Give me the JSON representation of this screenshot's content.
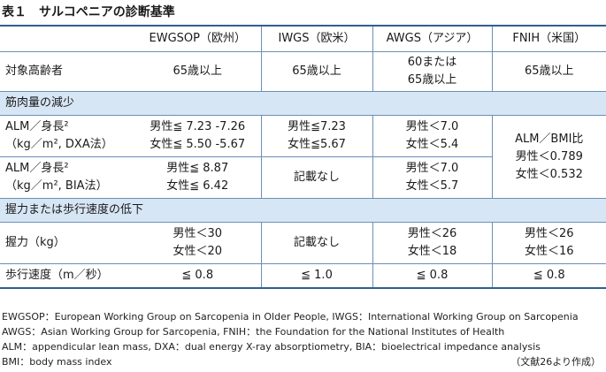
{
  "title": {
    "number": "表１",
    "text": "サルコペニアの診断基準"
  },
  "header": [
    "",
    "EWGSOP（欧州）",
    "IWGS（欧米）",
    "AWGS（アジア）",
    "FNIH（米国）"
  ],
  "rows": {
    "age": {
      "label": "対象高齢者",
      "ewgsop": "65歳以上",
      "iwgs": "65歳以上",
      "awgs_l1": "60または",
      "awgs_l2": "65歳以上",
      "fnih": "65歳以上"
    },
    "sec_muscle": "筋肉量の減少",
    "alm_dxa": {
      "label_l1": "ALM／身長²",
      "label_l2": "（kg／m², DXA法）",
      "ewgsop_l1": "男性≦ 7.23 -7.26",
      "ewgsop_l2": "女性≦ 5.50 -5.67",
      "iwgs_l1": "男性≦7.23",
      "iwgs_l2": "女性≦5.67",
      "awgs_l1": "男性＜7.0",
      "awgs_l2": "女性＜5.4"
    },
    "fnih_alm": {
      "l1": "ALM／BMI比",
      "l2": "男性＜0.789",
      "l3": "女性＜0.532"
    },
    "alm_bia": {
      "label_l1": "ALM／身長²",
      "label_l2": "（kg／m², BIA法）",
      "ewgsop_l1": "男性≦ 8.87",
      "ewgsop_l2": "女性≦ 6.42",
      "iwgs": "記載なし",
      "awgs_l1": "男性＜7.0",
      "awgs_l2": "女性＜5.7"
    },
    "sec_strength": "握力または歩行速度の低下",
    "grip": {
      "label": "握力（kg）",
      "ewgsop_l1": "男性＜30",
      "ewgsop_l2": "女性＜20",
      "iwgs": "記載なし",
      "awgs_l1": "男性＜26",
      "awgs_l2": "女性＜18",
      "fnih_l1": "男性＜26",
      "fnih_l2": "女性＜16"
    },
    "speed": {
      "label": "歩行速度（m／秒）",
      "ewgsop": "≦ 0.8",
      "iwgs": "≦ 1.0",
      "awgs": "≦ 0.8",
      "fnih": "≦ 0.8"
    }
  },
  "footnotes": [
    "EWGSOP：European Working Group on Sarcopenia in Older People, IWGS：International Working Group on Sarcopenia",
    "AWGS：Asian Working Group for Sarcopenia, FNIH：the Foundation for the National Institutes of Health",
    "ALM：appendicular lean mass, DXA：dual energy X-ray absorptiometry, BIA：bioelectrical impedance analysis",
    "BMI：body mass index"
  ],
  "source": "（文献26より作成）"
}
